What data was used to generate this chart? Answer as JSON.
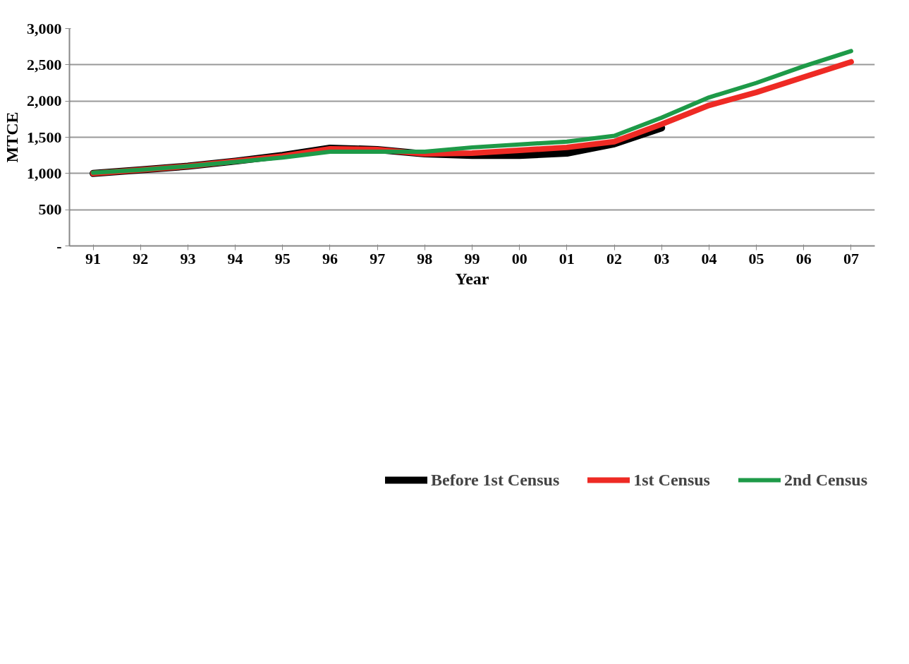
{
  "chart_data": {
    "type": "line",
    "xlabel": "Year",
    "ylabel": "MTCE",
    "categories": [
      "91",
      "92",
      "93",
      "94",
      "95",
      "96",
      "97",
      "98",
      "99",
      "00",
      "01",
      "02",
      "03",
      "04",
      "05",
      "06",
      "07"
    ],
    "series": [
      {
        "name": "Before 1st Census",
        "color": "#000000",
        "values": [
          1000,
          1050,
          1100,
          1170,
          1250,
          1350,
          1330,
          1270,
          1250,
          1250,
          1280,
          1410,
          1630,
          null,
          null,
          null,
          null
        ]
      },
      {
        "name": "1st Census",
        "color": "#ee2a24",
        "values": [
          1000,
          1050,
          1100,
          1170,
          1240,
          1340,
          1330,
          1270,
          1280,
          1320,
          1360,
          1440,
          1680,
          1940,
          2120,
          2330,
          2540
        ]
      },
      {
        "name": "2nd Census",
        "color": "#1e9a48",
        "values": [
          1010,
          1050,
          1100,
          1160,
          1220,
          1300,
          1300,
          1300,
          1360,
          1400,
          1440,
          1520,
          1770,
          2050,
          2250,
          2480,
          2690
        ]
      }
    ],
    "ylim": [
      0,
      3000
    ],
    "yticks": [
      {
        "value": 0,
        "label": "-"
      },
      {
        "value": 500,
        "label": "500"
      },
      {
        "value": 1000,
        "label": "1,000"
      },
      {
        "value": 1500,
        "label": "1,500"
      },
      {
        "value": 2000,
        "label": "2,000"
      },
      {
        "value": 2500,
        "label": "2,500"
      },
      {
        "value": 3000,
        "label": "3,000"
      }
    ],
    "grid": "y",
    "legend": "bottom",
    "line_style": "solid",
    "marker": "none"
  }
}
